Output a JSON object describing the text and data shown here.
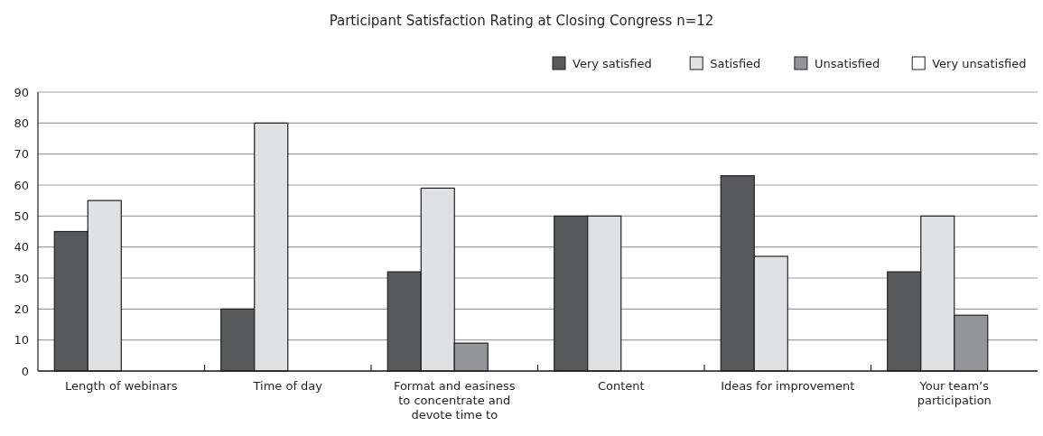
{
  "chart_data": {
    "type": "bar",
    "title": "Participant Satisfaction Rating at Closing Congress n=12",
    "categories": [
      "Length of webinars",
      "Time of day",
      "Format and easiness to concentrate and devote time to",
      "Content",
      "Ideas for improvement",
      "Your team’s participation"
    ],
    "series": [
      {
        "name": "Very satisfied",
        "color": "#58595b",
        "values": [
          45,
          20,
          32,
          50,
          63,
          32
        ]
      },
      {
        "name": "Satisfied",
        "color": "#e0e1e3",
        "values": [
          55,
          80,
          59,
          50,
          37,
          50
        ]
      },
      {
        "name": "Unsatisfied",
        "color": "#939598",
        "values": [
          0,
          0,
          9,
          0,
          0,
          18
        ]
      },
      {
        "name": "Very unsatisfied",
        "color": "#ffffff",
        "values": [
          0,
          0,
          0,
          0,
          0,
          0
        ]
      }
    ],
    "ylim": [
      0,
      90
    ],
    "yticks": [
      0,
      10,
      20,
      30,
      40,
      50,
      60,
      70,
      80,
      90
    ],
    "grid": "y",
    "legend": "top right"
  }
}
